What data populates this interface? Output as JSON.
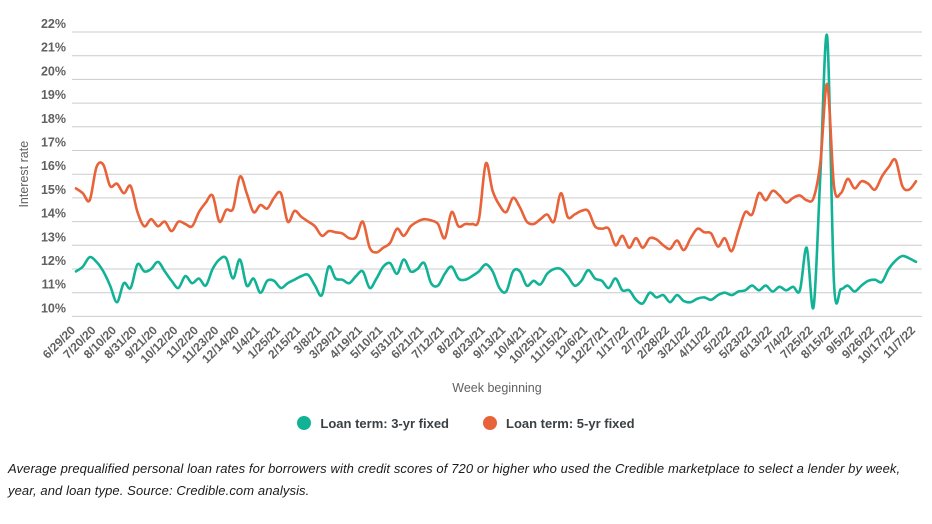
{
  "chart_data": {
    "type": "line",
    "title": "",
    "grid": true,
    "legend_position": "bottom",
    "y_axis": {
      "title": "Interest rate",
      "min": 10,
      "max": 22,
      "tick_labels": [
        "10%",
        "11%",
        "12%",
        "13%",
        "14%",
        "15%",
        "16%",
        "17%",
        "18%",
        "19%",
        "20%",
        "21%",
        "22%"
      ]
    },
    "x_axis": {
      "title": "Week beginning",
      "weeks_per_label": 3,
      "labels": [
        "6/29/20",
        "7/20/20",
        "8/10/20",
        "8/31/20",
        "9/21/20",
        "10/12/20",
        "11/2/20",
        "11/23/20",
        "12/14/20",
        "1/4/21",
        "1/25/21",
        "2/15/21",
        "3/8/21",
        "3/29/21",
        "4/19/21",
        "5/10/21",
        "5/31/21",
        "6/21/21",
        "7/12/21",
        "8/2/21",
        "8/23/21",
        "9/13/21",
        "10/4/21",
        "10/25/21",
        "11/15/21",
        "12/6/21",
        "12/27/21",
        "1/17/22",
        "2/7/22",
        "2/28/22",
        "3/21/22",
        "4/11/22",
        "5/2/22",
        "5/23/22",
        "6/13/22",
        "7/4/22",
        "7/25/22",
        "8/15/22",
        "9/5/22",
        "9/26/22",
        "10/17/22",
        "11/7/22"
      ]
    },
    "series": [
      {
        "name": "Loan term: 3-yr fixed",
        "color": "#12b296",
        "values": [
          11.9,
          12.1,
          12.5,
          12.3,
          11.9,
          11.3,
          10.6,
          11.4,
          11.2,
          12.2,
          11.9,
          12.0,
          12.3,
          11.9,
          11.5,
          11.2,
          11.7,
          11.4,
          11.6,
          11.3,
          12.0,
          12.4,
          12.45,
          11.6,
          12.4,
          11.3,
          11.6,
          11.0,
          11.5,
          11.5,
          11.2,
          11.4,
          11.55,
          11.7,
          11.75,
          11.3,
          10.9,
          12.1,
          11.6,
          11.55,
          11.4,
          11.7,
          11.9,
          11.2,
          11.6,
          12.1,
          12.25,
          11.8,
          12.4,
          11.9,
          12.0,
          12.25,
          11.4,
          11.3,
          11.8,
          12.1,
          11.6,
          11.55,
          11.7,
          11.9,
          12.2,
          11.9,
          11.2,
          11.05,
          11.9,
          11.9,
          11.3,
          11.5,
          11.35,
          11.8,
          12.0,
          12.0,
          11.7,
          11.3,
          11.5,
          11.95,
          11.6,
          11.5,
          11.2,
          11.6,
          11.1,
          11.1,
          10.7,
          10.55,
          11.0,
          10.8,
          10.9,
          10.6,
          10.9,
          10.65,
          10.6,
          10.75,
          10.8,
          10.7,
          10.9,
          11.0,
          10.9,
          11.05,
          11.1,
          11.3,
          11.1,
          11.3,
          11.05,
          11.25,
          11.1,
          11.25,
          11.1,
          12.9,
          10.4,
          16.0,
          21.8,
          11.4,
          11.15,
          11.3,
          11.05,
          11.3,
          11.5,
          11.55,
          11.45,
          12.0,
          12.35,
          12.55,
          12.45,
          12.3
        ]
      },
      {
        "name": "Loan term: 5-yr fixed",
        "color": "#e8633a",
        "values": [
          15.4,
          15.2,
          14.9,
          16.3,
          16.4,
          15.5,
          15.6,
          15.2,
          15.5,
          14.4,
          13.8,
          14.1,
          13.8,
          14.0,
          13.6,
          14.0,
          13.9,
          13.8,
          14.4,
          14.8,
          15.1,
          14.0,
          14.5,
          14.55,
          15.9,
          15.2,
          14.4,
          14.7,
          14.55,
          15.0,
          15.2,
          14.0,
          14.45,
          14.2,
          14.0,
          13.8,
          13.4,
          13.6,
          13.55,
          13.5,
          13.3,
          13.35,
          14.0,
          12.9,
          12.7,
          12.9,
          13.1,
          13.7,
          13.4,
          13.8,
          14.0,
          14.1,
          14.05,
          13.9,
          13.3,
          14.4,
          13.8,
          13.9,
          13.9,
          14.1,
          16.45,
          15.3,
          14.7,
          14.4,
          15.0,
          14.6,
          14.0,
          13.9,
          14.1,
          14.3,
          14.0,
          15.2,
          14.2,
          14.3,
          14.45,
          14.45,
          13.8,
          13.7,
          13.7,
          13.0,
          13.4,
          12.9,
          13.3,
          12.9,
          13.3,
          13.25,
          13.0,
          12.85,
          13.2,
          12.8,
          13.3,
          13.7,
          13.55,
          13.5,
          12.95,
          13.3,
          12.75,
          13.6,
          14.4,
          14.3,
          15.2,
          14.9,
          15.3,
          15.1,
          14.8,
          15.0,
          15.1,
          14.9,
          15.0,
          16.5,
          19.8,
          15.5,
          15.2,
          15.8,
          15.4,
          15.7,
          15.6,
          15.35,
          15.9,
          16.3,
          16.6,
          15.5,
          15.35,
          15.7
        ]
      }
    ],
    "style": {
      "grid_color": "#cccccc",
      "tick_text_color": "#616161",
      "axis_title_color": "#616161",
      "background": "#ffffff"
    }
  },
  "caption": {
    "text": "Average prequalified personal loan rates for borrowers with credit scores of 720 or higher who used the Credible marketplace to select a lender by week, year, and loan type. Source: Credible.com analysis."
  }
}
